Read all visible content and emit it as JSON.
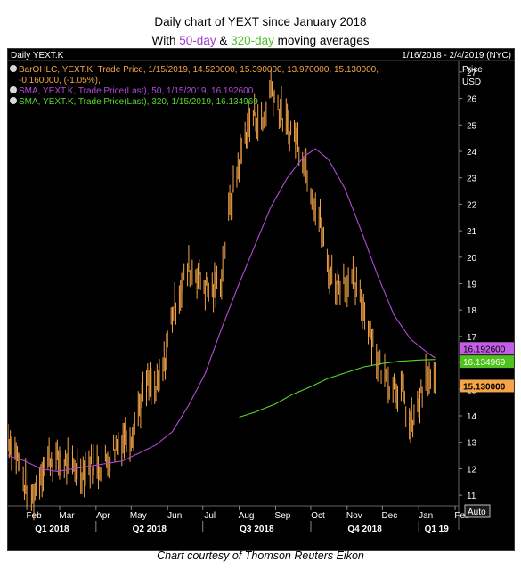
{
  "header": {
    "title": "Daily chart of YEXT since January 2018",
    "subtitle_prefix": "With ",
    "subtitle_50": "50-day",
    "subtitle_amp": " & ",
    "subtitle_320": "320-day",
    "subtitle_suffix": " moving averages"
  },
  "panel": {
    "name": "Daily YEXT.K",
    "date_range": "1/16/2018 - 2/4/2019 (NYC)",
    "axis_title_1": "Price",
    "axis_title_2": "USD",
    "auto_label": "Auto"
  },
  "legend": {
    "line1": "BarOHLC, YEXT.K, Trade Price,  1/15/2019,  14.520000,  15.390000,  13.970000,  15.130000,",
    "line1b": "-0.160000,  (-1.05%),",
    "line2": "SMA, YEXT.K, Trade Price(Last),  50,  1/15/2019,  16.192600,",
    "line3": "SMA, YEXT.K, Trade Price(Last),  320,  1/15/2019,  16.134969"
  },
  "footer": "Chart courtesy of Thomson Reuters Eikon",
  "colors": {
    "background": "#000000",
    "price_bars": "#f5a447",
    "sma50": "#b14ad9",
    "sma320": "#59d62a",
    "axis_text": "#ffffff",
    "tag_sma50": "#c45ee8",
    "tag_sma320": "#4ec21c",
    "tag_price": "#f5a447"
  },
  "chart_data": {
    "type": "line",
    "title": "Daily chart of YEXT since January 2018",
    "ylabel": "Price USD",
    "ylim": [
      10.6,
      27.4
    ],
    "y_ticks": [
      11,
      12,
      13,
      14,
      15,
      16,
      17,
      18,
      19,
      20,
      21,
      22,
      23,
      24,
      25,
      26,
      27
    ],
    "x_month_ticks": [
      "Feb",
      "Mar",
      "Apr",
      "May",
      "Jun",
      "Jul",
      "Aug",
      "Sep",
      "Oct",
      "Nov",
      "Dec",
      "Jan",
      "Feb"
    ],
    "x_quarter_labels": [
      "Q1 2018",
      "Q2 2018",
      "Q3 2018",
      "Q4 2018",
      "Q1 19"
    ],
    "date_range": [
      "2018-01-16",
      "2019-02-04"
    ],
    "last_values": {
      "close": 15.13,
      "sma50": 16.1926,
      "sma320": 16.134969
    },
    "series": [
      {
        "name": "BarOHLC, YEXT.K, Trade Price",
        "x": [
          "2018-01-16",
          "2018-01-23",
          "2018-01-30",
          "2018-02-06",
          "2018-02-13",
          "2018-02-20",
          "2018-02-27",
          "2018-03-06",
          "2018-03-13",
          "2018-03-20",
          "2018-03-27",
          "2018-04-03",
          "2018-04-10",
          "2018-04-17",
          "2018-04-24",
          "2018-05-01",
          "2018-05-08",
          "2018-05-15",
          "2018-05-22",
          "2018-05-29",
          "2018-06-05",
          "2018-06-12",
          "2018-06-19",
          "2018-06-26",
          "2018-07-03",
          "2018-07-10",
          "2018-07-17",
          "2018-07-24",
          "2018-07-31",
          "2018-08-07",
          "2018-08-14",
          "2018-08-21",
          "2018-08-28",
          "2018-09-04",
          "2018-09-11",
          "2018-09-18",
          "2018-09-25",
          "2018-10-02",
          "2018-10-09",
          "2018-10-16",
          "2018-10-23",
          "2018-10-30",
          "2018-11-06",
          "2018-11-13",
          "2018-11-20",
          "2018-11-27",
          "2018-12-04",
          "2018-12-11",
          "2018-12-18",
          "2018-12-25",
          "2019-01-01",
          "2019-01-08",
          "2019-01-15"
        ],
        "values": [
          13.2,
          12.6,
          11.4,
          10.9,
          11.9,
          12.4,
          12.3,
          12.2,
          12.1,
          11.9,
          12.2,
          12.1,
          12.3,
          12.8,
          13.2,
          13.3,
          14.4,
          15.2,
          14.9,
          15.9,
          17.9,
          18.8,
          19.6,
          19.4,
          18.9,
          18.7,
          19.3,
          21.9,
          23.4,
          24.8,
          25.4,
          25.0,
          26.5,
          25.6,
          24.9,
          24.6,
          23.8,
          22.5,
          21.3,
          19.5,
          19.0,
          19.2,
          19.0,
          18.3,
          17.4,
          16.1,
          15.4,
          15.2,
          14.9,
          13.5,
          14.4,
          15.5,
          15.13
        ]
      },
      {
        "name": "SMA 50",
        "x": [
          "2018-01-16",
          "2018-01-30",
          "2018-02-13",
          "2018-02-27",
          "2018-03-13",
          "2018-03-27",
          "2018-04-10",
          "2018-04-24",
          "2018-05-08",
          "2018-05-22",
          "2018-06-05",
          "2018-06-19",
          "2018-07-03",
          "2018-07-17",
          "2018-07-31",
          "2018-08-14",
          "2018-08-28",
          "2018-09-11",
          "2018-09-25",
          "2018-10-05",
          "2018-10-16",
          "2018-10-30",
          "2018-11-13",
          "2018-11-27",
          "2018-12-11",
          "2018-12-25",
          "2019-01-08",
          "2019-01-15"
        ],
        "values": [
          12.5,
          12.3,
          12.0,
          11.9,
          12.0,
          12.1,
          12.2,
          12.3,
          12.6,
          12.9,
          13.4,
          14.4,
          15.6,
          17.3,
          18.9,
          20.4,
          21.9,
          23.0,
          23.8,
          24.1,
          23.7,
          22.6,
          21.0,
          19.3,
          17.8,
          16.9,
          16.4,
          16.19
        ]
      },
      {
        "name": "SMA 320",
        "x": [
          "2018-08-01",
          "2018-08-15",
          "2018-09-01",
          "2018-09-15",
          "2018-10-01",
          "2018-10-15",
          "2018-11-01",
          "2018-11-15",
          "2018-12-01",
          "2018-12-15",
          "2019-01-01",
          "2019-01-15"
        ],
        "values": [
          13.95,
          14.15,
          14.45,
          14.8,
          15.1,
          15.4,
          15.65,
          15.85,
          15.98,
          16.06,
          16.11,
          16.13
        ]
      }
    ]
  }
}
